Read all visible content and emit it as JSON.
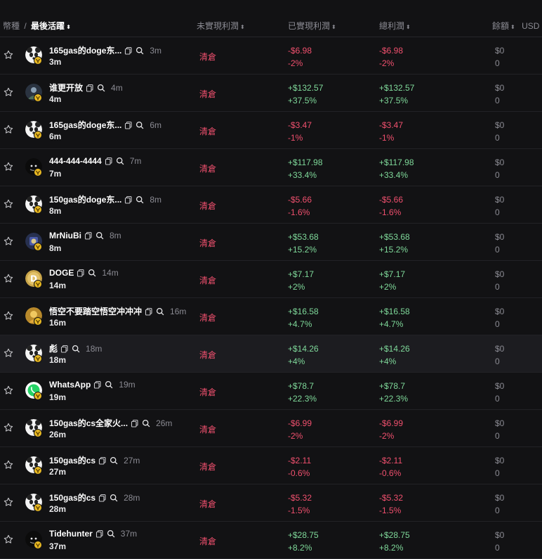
{
  "header": {
    "token_label": "幣種",
    "separator": "/",
    "last_active_label": "最後活躍",
    "unrealized_label": "未實現利潤",
    "realized_label": "已實現利潤",
    "total_label": "總利潤",
    "balance_label": "餘額",
    "currency_label": "USD",
    "sort_glyph": "⬍",
    "sort_active_glyph": "⬍"
  },
  "colors": {
    "positive": "#7fd99a",
    "negative": "#f0506e",
    "badge": "#e8b923"
  },
  "rows": [
    {
      "name": "165gas的doge东...",
      "age_time": "3m",
      "age": "3m",
      "status": "清倉",
      "realized": "-$6.98",
      "realized_pct": "-2%",
      "total": "-$6.98",
      "total_pct": "-2%",
      "balance": "$0",
      "balance_qty": "0",
      "sign": "neg",
      "avatar": "panda-icon"
    },
    {
      "name": "谁更开放",
      "age_time": "4m",
      "age": "4m",
      "status": "清倉",
      "realized": "+$132.57",
      "realized_pct": "+37.5%",
      "total": "+$132.57",
      "total_pct": "+37.5%",
      "balance": "$0",
      "balance_qty": "0",
      "sign": "pos",
      "avatar": "person-icon"
    },
    {
      "name": "165gas的doge东...",
      "age_time": "6m",
      "age": "6m",
      "status": "清倉",
      "realized": "-$3.47",
      "realized_pct": "-1%",
      "total": "-$3.47",
      "total_pct": "-1%",
      "balance": "$0",
      "balance_qty": "0",
      "sign": "neg",
      "avatar": "panda-icon"
    },
    {
      "name": "444-444-4444",
      "age_time": "7m",
      "age": "7m",
      "status": "清倉",
      "realized": "+$117.98",
      "realized_pct": "+33.4%",
      "total": "+$117.98",
      "total_pct": "+33.4%",
      "balance": "$0",
      "balance_qty": "0",
      "sign": "pos",
      "avatar": "dark-icon"
    },
    {
      "name": "150gas的doge东...",
      "age_time": "8m",
      "age": "8m",
      "status": "清倉",
      "realized": "-$5.66",
      "realized_pct": "-1.6%",
      "total": "-$5.66",
      "total_pct": "-1.6%",
      "balance": "$0",
      "balance_qty": "0",
      "sign": "neg",
      "avatar": "panda-icon"
    },
    {
      "name": "MrNiuBi",
      "age_time": "8m",
      "age": "8m",
      "status": "清倉",
      "realized": "+$53.68",
      "realized_pct": "+15.2%",
      "total": "+$53.68",
      "total_pct": "+15.2%",
      "balance": "$0",
      "balance_qty": "0",
      "sign": "pos",
      "avatar": "blue-icon"
    },
    {
      "name": "DOGE",
      "age_time": "14m",
      "age": "14m",
      "status": "清倉",
      "realized": "+$7.17",
      "realized_pct": "+2%",
      "total": "+$7.17",
      "total_pct": "+2%",
      "balance": "$0",
      "balance_qty": "0",
      "sign": "pos",
      "avatar": "doge-icon"
    },
    {
      "name": "悟空不要踏空悟空冲冲冲",
      "age_time": "16m",
      "age": "16m",
      "status": "清倉",
      "realized": "+$16.58",
      "realized_pct": "+4.7%",
      "total": "+$16.58",
      "total_pct": "+4.7%",
      "balance": "$0",
      "balance_qty": "0",
      "sign": "pos",
      "avatar": "gold-icon"
    },
    {
      "name": "彪",
      "age_time": "18m",
      "age": "18m",
      "status": "清倉",
      "realized": "+$14.26",
      "realized_pct": "+4%",
      "total": "+$14.26",
      "total_pct": "+4%",
      "balance": "$0",
      "balance_qty": "0",
      "sign": "pos",
      "avatar": "panda-icon",
      "highlight": true
    },
    {
      "name": "WhatsApp",
      "age_time": "19m",
      "age": "19m",
      "status": "清倉",
      "realized": "+$78.7",
      "realized_pct": "+22.3%",
      "total": "+$78.7",
      "total_pct": "+22.3%",
      "balance": "$0",
      "balance_qty": "0",
      "sign": "pos",
      "avatar": "whatsapp-icon"
    },
    {
      "name": "150gas的cs全家火...",
      "age_time": "26m",
      "age": "26m",
      "status": "清倉",
      "realized": "-$6.99",
      "realized_pct": "-2%",
      "total": "-$6.99",
      "total_pct": "-2%",
      "balance": "$0",
      "balance_qty": "0",
      "sign": "neg",
      "avatar": "panda-icon"
    },
    {
      "name": "150gas的cs",
      "age_time": "27m",
      "age": "27m",
      "status": "清倉",
      "realized": "-$2.11",
      "realized_pct": "-0.6%",
      "total": "-$2.11",
      "total_pct": "-0.6%",
      "balance": "$0",
      "balance_qty": "0",
      "sign": "neg",
      "avatar": "panda-icon"
    },
    {
      "name": "150gas的cs",
      "age_time": "28m",
      "age": "28m",
      "status": "清倉",
      "realized": "-$5.32",
      "realized_pct": "-1.5%",
      "total": "-$5.32",
      "total_pct": "-1.5%",
      "balance": "$0",
      "balance_qty": "0",
      "sign": "neg",
      "avatar": "panda-icon"
    },
    {
      "name": "Tidehunter",
      "age_time": "37m",
      "age": "37m",
      "status": "清倉",
      "realized": "+$28.75",
      "realized_pct": "+8.2%",
      "total": "+$28.75",
      "total_pct": "+8.2%",
      "balance": "$0",
      "balance_qty": "0",
      "sign": "pos",
      "avatar": "dark-icon"
    }
  ]
}
